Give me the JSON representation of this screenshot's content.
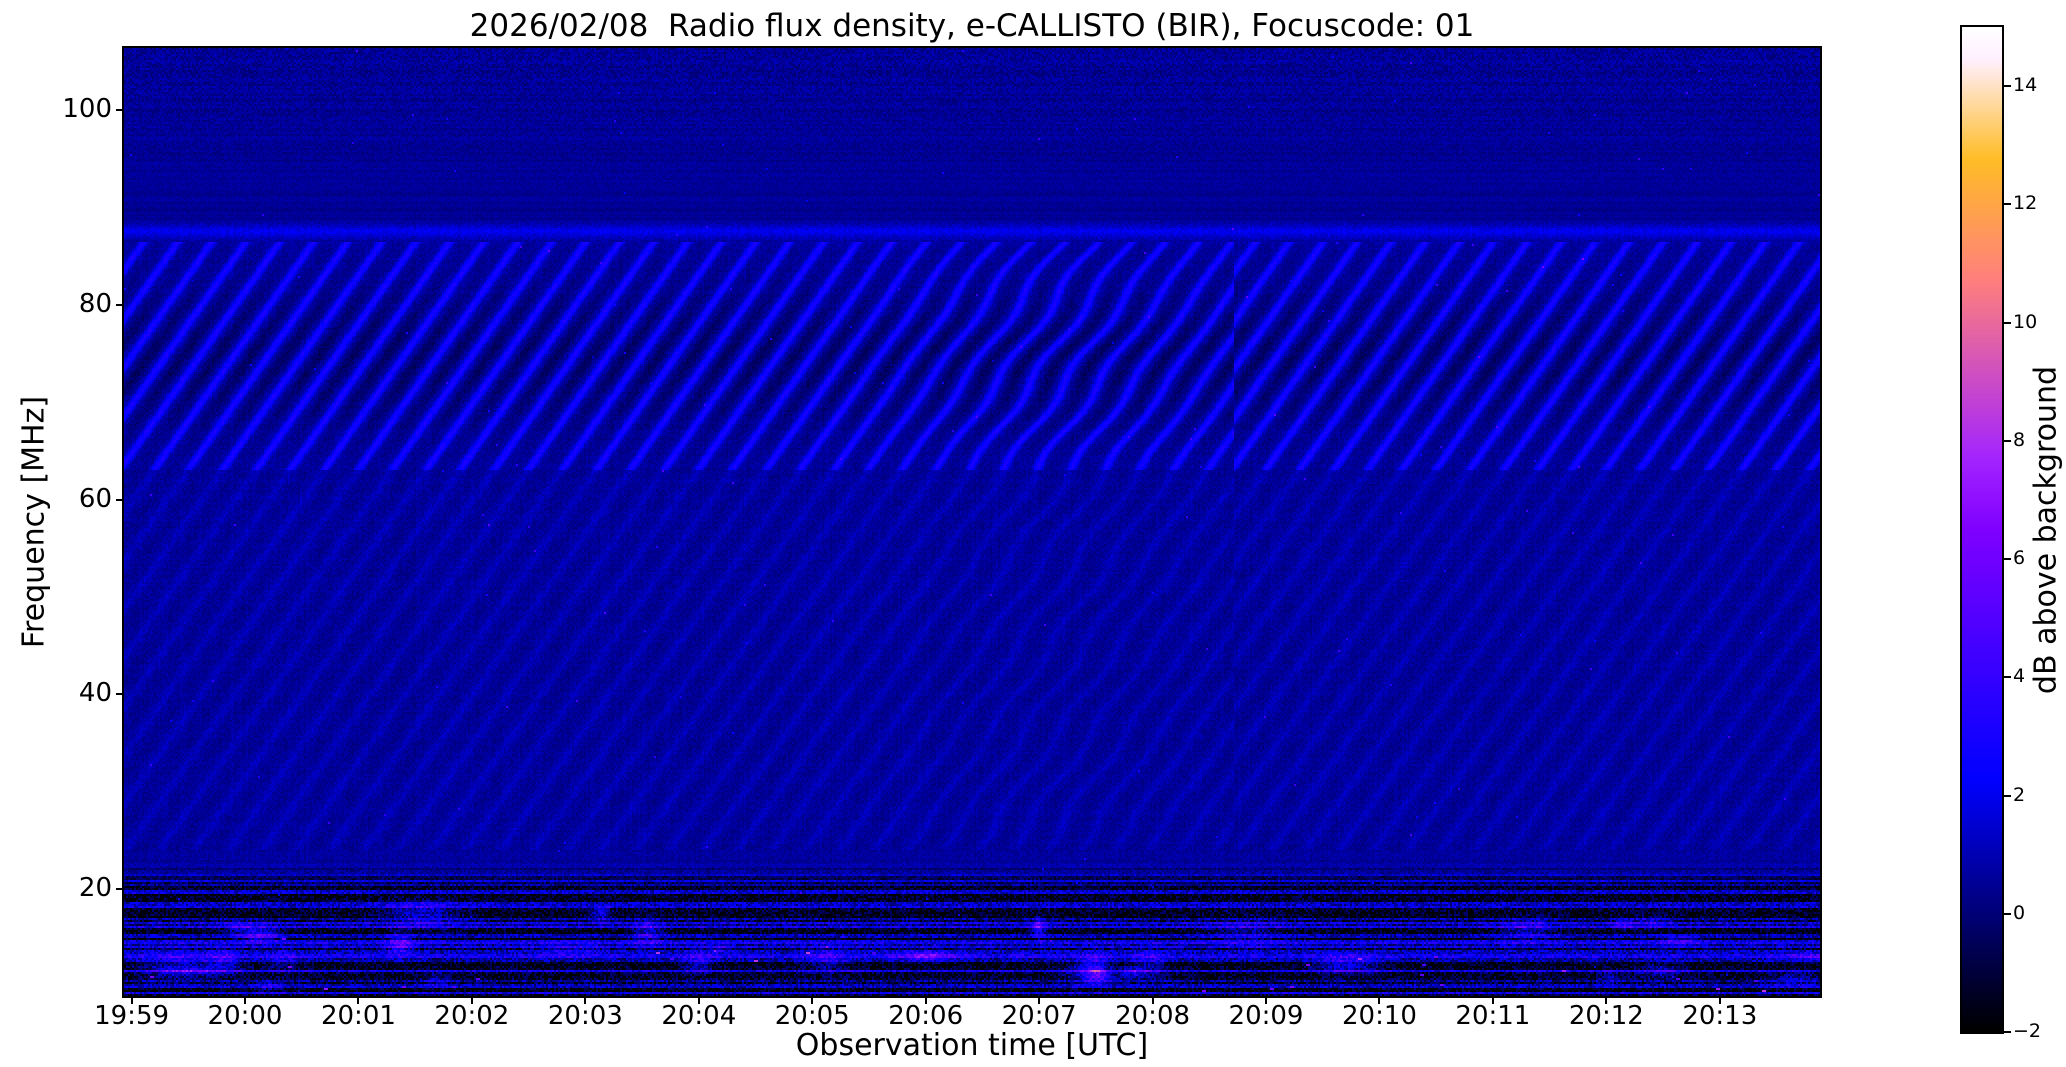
{
  "chart_data": {
    "type": "heatmap",
    "title": "2026/02/08  Radio flux density, e-CALLISTO (BIR), Focuscode: 01",
    "xlabel": "Observation time [UTC]",
    "ylabel": "Frequency [MHz]",
    "x_ticks": [
      "19:59",
      "20:00",
      "20:01",
      "20:02",
      "20:03",
      "20:04",
      "20:05",
      "20:06",
      "20:07",
      "20:08",
      "20:09",
      "20:10",
      "20:11",
      "20:12",
      "20:13"
    ],
    "x_axis": {
      "first_tick_offset_s": 4,
      "tick_interval_s": 60,
      "total_span_s": 897
    },
    "y_ticks": [
      100,
      80,
      60,
      40,
      20
    ],
    "y_range": [
      9.0,
      106.4
    ],
    "grid": false,
    "legend": "none",
    "colorbar": {
      "label": "dB above background",
      "ticks": [
        -2,
        0,
        2,
        4,
        6,
        8,
        10,
        12,
        14
      ],
      "range": [
        -2,
        15
      ],
      "colormap": "gnuplot2"
    },
    "instrument": "e-CALLISTO (BIR)",
    "date": "2026/02/08",
    "focuscode": "01",
    "features": [
      "Quiet dark-blue background around 0-1 dB over most of the dynamic spectrum; no solar radio burst visible",
      "Strong diagonal interference stripe pattern (bright blue ridges with near-black troughs) between ~63 and ~86 MHz, wavy distortion near 20:06-20:08 and a phase break near 20:08:40",
      "Fainter diagonal ripple pattern between ~24 and ~62 MHz",
      "Narrow enhanced horizontal line near 87.6 MHz",
      "Speckled horizontal noise rows with slight brightening above ~88 MHz",
      "Broadband terrestrial interference below ~22 MHz: black dropout rows interleaved with bright blue patches and sparse magenta/pink bursts"
    ],
    "synthesis": {
      "seed": 20260208,
      "background_db": 0.62,
      "stripe_time_period_s": 18,
      "stripe_freq_period_mhz": 5.0,
      "strong_stripe_band_mhz": [
        63,
        86.5
      ],
      "weak_stripe_band_mhz": [
        24,
        63
      ],
      "noise_band_max_mhz": 23,
      "enhanced_line_mhz": 87.6,
      "stripe_peak_db": 2.9
    }
  }
}
